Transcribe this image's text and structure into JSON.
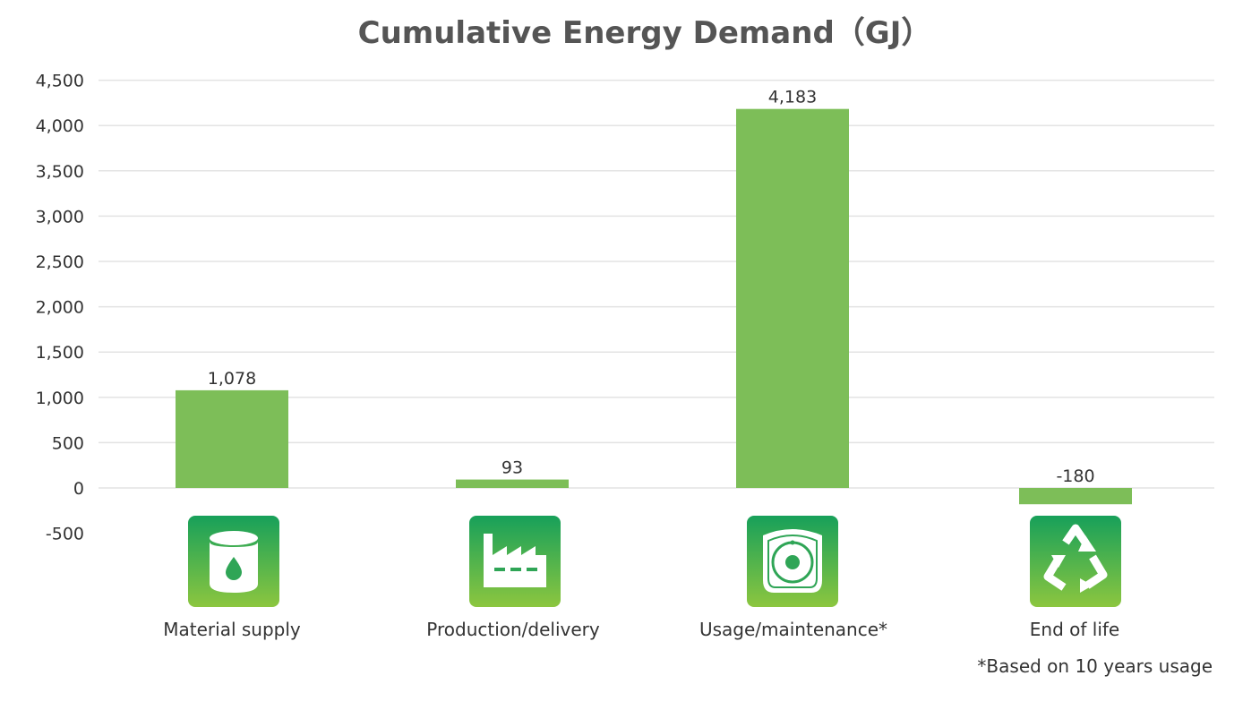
{
  "chart_data": {
    "type": "bar",
    "title": "Cumulative Energy Demand（GJ）",
    "categories": [
      "Material supply",
      "Production/delivery",
      "Usage/maintenance*",
      "End of life"
    ],
    "values": [
      1078,
      93,
      4183,
      -180
    ],
    "value_labels": [
      "1,078",
      "93",
      "4,183",
      "-180"
    ],
    "yticks": [
      -500,
      0,
      500,
      1000,
      1500,
      2000,
      2500,
      3000,
      3500,
      4000,
      4500
    ],
    "ytick_labels": [
      "-500",
      "0",
      "500",
      "1,000",
      "1,500",
      "2,000",
      "2,500",
      "3,000",
      "3,500",
      "4,000",
      "4,500"
    ],
    "ylim": [
      -500,
      4500
    ],
    "grid": true,
    "legend": "none",
    "bar_color": "#7dbe58",
    "icons": [
      "oil-barrel-icon",
      "factory-icon",
      "machine-icon",
      "recycle-icon"
    ],
    "footnote": "*Based on 10 years usage"
  }
}
